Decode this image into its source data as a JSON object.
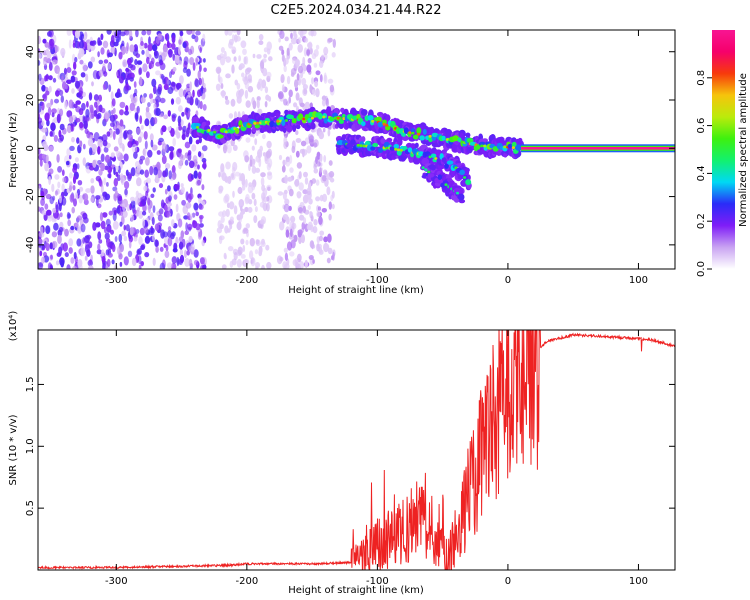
{
  "figure_title": "C2E5.2024.034.21.44.R22",
  "colors": {
    "snr_line": "#ee2222",
    "axis": "#000000",
    "colormap": [
      "#ffffff",
      "#c9a3f2",
      "#7f1df7",
      "#2a2cf8",
      "#00d9f4",
      "#12f16e",
      "#3ef10f",
      "#bbeb0c",
      "#f6c40c",
      "#f73a0c",
      "#f6006b",
      "#f81592"
    ]
  },
  "chart_data": [
    {
      "type": "heatmap",
      "name": "spectrogram",
      "xlabel": "Height of straight line (km)",
      "ylabel": "Frequency (Hz)",
      "xlim": [
        -360,
        128
      ],
      "ylim": [
        -50,
        49
      ],
      "xticks": [
        -300,
        -200,
        -100,
        0,
        100
      ],
      "xtick_labels": [
        "-300",
        "-200",
        "-100",
        "0",
        "100"
      ],
      "yticks": [
        -40,
        -20,
        0,
        20,
        40
      ],
      "ytick_labels": [
        "-40",
        "-20",
        "0",
        "20",
        "40"
      ],
      "colorbar": {
        "label": "Normalized spectral amplitude",
        "range": [
          0.0,
          1.0
        ],
        "ticks": [
          0.0,
          0.2,
          0.4,
          0.6,
          0.8
        ],
        "tick_labels": [
          "0.0",
          "0.2",
          "0.4",
          "0.6",
          "0.8"
        ]
      },
      "noise_regions": [
        {
          "x": [
            -360,
            -232
          ],
          "y": [
            -50,
            49
          ],
          "amplitude": 0.15
        },
        {
          "x": [
            -222,
            -182
          ],
          "y": [
            -50,
            49
          ],
          "amplitude": 0.05
        },
        {
          "x": [
            -175,
            -133
          ],
          "y": [
            -50,
            49
          ],
          "amplitude": 0.08
        }
      ],
      "tracks": [
        {
          "x": [
            -240,
            -220,
            -200,
            -180,
            -160,
            -140,
            -120,
            -100,
            -80,
            -60,
            -40,
            -20,
            0,
            10
          ],
          "y": [
            9,
            6,
            10,
            11,
            12,
            13,
            12,
            11,
            7,
            5,
            3,
            1,
            0.5,
            0
          ],
          "amplitude": 0.45
        },
        {
          "x": [
            -130,
            -110,
            -90,
            -70,
            -50,
            -40,
            -30
          ],
          "y": [
            2,
            1,
            0,
            -2,
            -5,
            -8,
            -14
          ],
          "amplitude": 0.35
        },
        {
          "x": [
            -65,
            -55,
            -45,
            -35
          ],
          "y": [
            -8,
            -12,
            -16,
            -20
          ],
          "amplitude": 0.2
        }
      ],
      "carrier": {
        "x": [
          10,
          128
        ],
        "y": 0,
        "amplitude": 1.0
      }
    },
    {
      "type": "line",
      "name": "snr",
      "xlabel": "Height of straight line (km)",
      "ylabel": "SNR (10 * v/v)",
      "y_multiplier": "(x10⁴)",
      "xlim": [
        -360,
        128
      ],
      "ylim": [
        0,
        1.94
      ],
      "xticks": [
        -300,
        -200,
        -100,
        0,
        100
      ],
      "xtick_labels": [
        "-300",
        "-200",
        "-100",
        "0",
        "100"
      ],
      "yticks": [
        0.5,
        1.0,
        1.5
      ],
      "ytick_labels": [
        "0.5",
        "1.0",
        "1.5"
      ],
      "series": [
        {
          "x": [
            -360,
            -300,
            -250,
            -210,
            -200,
            -150,
            -120,
            -110,
            -100,
            -90,
            -80,
            -70,
            -60,
            -50,
            -45,
            -40,
            -30,
            -20,
            -10,
            0,
            10,
            20,
            30,
            50,
            70,
            100,
            110,
            128
          ],
          "y": [
            0.02,
            0.02,
            0.03,
            0.04,
            0.05,
            0.05,
            0.06,
            0.1,
            0.2,
            0.25,
            0.3,
            0.45,
            0.3,
            0.15,
            0.1,
            0.3,
            0.6,
            0.9,
            1.25,
            1.4,
            1.55,
            1.75,
            1.85,
            1.9,
            1.89,
            1.87,
            1.86,
            1.81
          ]
        }
      ]
    }
  ]
}
